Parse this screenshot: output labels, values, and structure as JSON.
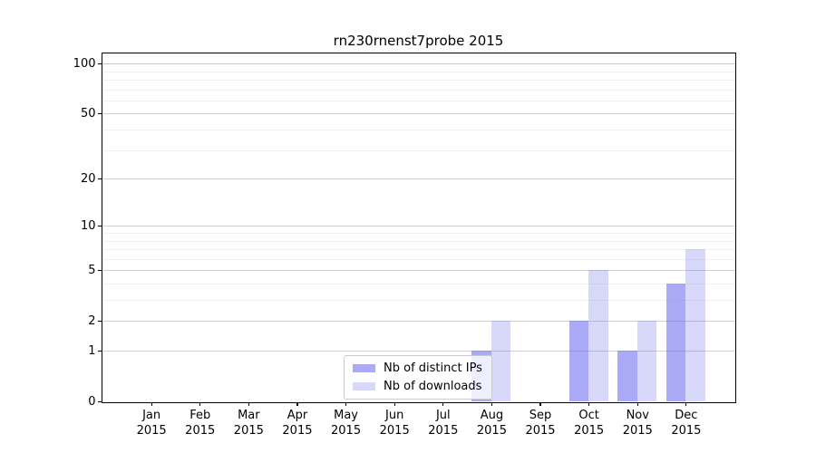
{
  "chart_data": {
    "type": "bar",
    "title": "rn230rnenst7probe 2015",
    "categories": [
      "Jan",
      "Feb",
      "Mar",
      "Apr",
      "May",
      "Jun",
      "Jul",
      "Aug",
      "Sep",
      "Oct",
      "Nov",
      "Dec"
    ],
    "year_label": "2015",
    "series": [
      {
        "name": "Nb of distinct IPs",
        "color": "rgba(100,100,240,0.55)",
        "color_hex_on_white": "#aaaaf7",
        "values": [
          0,
          0,
          0,
          0,
          0,
          0,
          0,
          1,
          0,
          2,
          1,
          4
        ]
      },
      {
        "name": "Nb of downloads",
        "color": "rgba(100,100,240,0.25)",
        "color_hex_on_white": "#d8d8fb",
        "values": [
          0,
          0,
          0,
          0,
          0,
          0,
          0,
          2,
          0,
          5,
          2,
          7
        ]
      }
    ],
    "y_scale": "log1p",
    "ylim": [
      0,
      115
    ],
    "y_ticks": [
      0,
      1,
      2,
      5,
      10,
      20,
      50,
      100
    ],
    "y_minor_gridlines": [
      3,
      4,
      6,
      7,
      8,
      9,
      30,
      40,
      60,
      70,
      80,
      90
    ],
    "xlabel": "",
    "ylabel": "",
    "grid": true,
    "legend_position": "lower-center"
  },
  "colors": {
    "bar_base": "#6464f0",
    "gridline_major": "#d0d0d0",
    "gridline_top": "#c6c6c6",
    "gridline_minor": "#f1f1f1",
    "spine": "#000000",
    "legend_border": "#cccccc",
    "background": "#ffffff",
    "text": "#000000"
  }
}
